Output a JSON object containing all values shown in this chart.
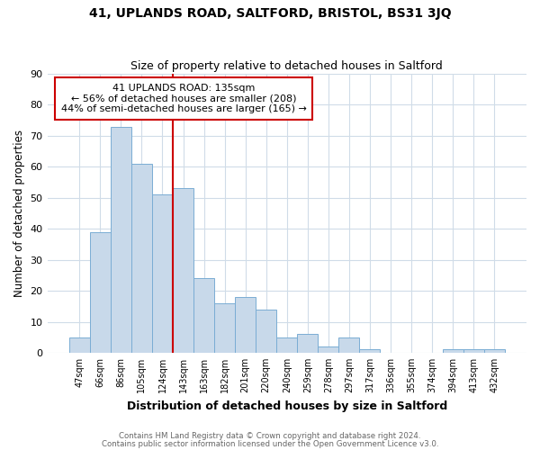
{
  "title": "41, UPLANDS ROAD, SALTFORD, BRISTOL, BS31 3JQ",
  "subtitle": "Size of property relative to detached houses in Saltford",
  "xlabel": "Distribution of detached houses by size in Saltford",
  "ylabel": "Number of detached properties",
  "bar_labels": [
    "47sqm",
    "66sqm",
    "86sqm",
    "105sqm",
    "124sqm",
    "143sqm",
    "163sqm",
    "182sqm",
    "201sqm",
    "220sqm",
    "240sqm",
    "259sqm",
    "278sqm",
    "297sqm",
    "317sqm",
    "336sqm",
    "355sqm",
    "374sqm",
    "394sqm",
    "413sqm",
    "432sqm"
  ],
  "bar_values": [
    5,
    39,
    73,
    61,
    51,
    53,
    24,
    16,
    18,
    14,
    5,
    6,
    2,
    5,
    1,
    0,
    0,
    0,
    1,
    1,
    1
  ],
  "bar_color": "#c8d9ea",
  "bar_edge_color": "#7aadd4",
  "vline_color": "#cc0000",
  "annotation_title": "41 UPLANDS ROAD: 135sqm",
  "annotation_line2": "← 56% of detached houses are smaller (208)",
  "annotation_line3": "44% of semi-detached houses are larger (165) →",
  "annotation_box_color": "#ffffff",
  "annotation_box_edge": "#cc0000",
  "ylim": [
    0,
    90
  ],
  "yticks": [
    0,
    10,
    20,
    30,
    40,
    50,
    60,
    70,
    80,
    90
  ],
  "footer1": "Contains HM Land Registry data © Crown copyright and database right 2024.",
  "footer2": "Contains public sector information licensed under the Open Government Licence v3.0.",
  "background_color": "#ffffff",
  "plot_bg_color": "#ffffff",
  "grid_color": "#d0dce8"
}
